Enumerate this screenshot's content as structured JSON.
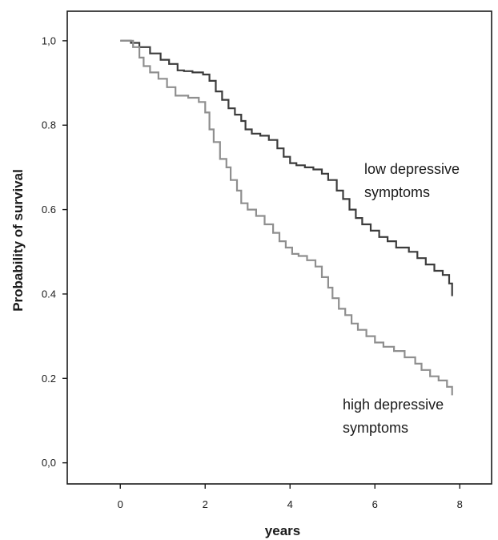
{
  "chart_data": {
    "type": "line",
    "title": "",
    "xlabel": "years",
    "ylabel": "Probability of survival",
    "xlim": [
      -1.25,
      8.75
    ],
    "ylim": [
      -0.05,
      1.07
    ],
    "xticks": [
      0,
      2,
      4,
      6,
      8
    ],
    "xtick_labels": [
      "0",
      "2",
      "4",
      "6",
      "8"
    ],
    "yticks": [
      0.0,
      0.2,
      0.4,
      0.6,
      0.8,
      1.0
    ],
    "ytick_labels": [
      "0,0",
      "0.2",
      "0.4",
      "0.6",
      "0.8",
      "1,0"
    ],
    "grid": false,
    "legend": "none",
    "step": true,
    "series": [
      {
        "name": "low depressive symptoms",
        "color": "#3c3c3c",
        "x": [
          0,
          0.25,
          0.45,
          0.7,
          0.95,
          1.15,
          1.35,
          1.5,
          1.7,
          1.95,
          2.1,
          2.25,
          2.4,
          2.55,
          2.7,
          2.85,
          2.95,
          3.1,
          3.3,
          3.5,
          3.7,
          3.85,
          4.0,
          4.15,
          4.35,
          4.55,
          4.75,
          4.9,
          5.1,
          5.25,
          5.4,
          5.55,
          5.7,
          5.9,
          6.1,
          6.3,
          6.5,
          6.8,
          7.0,
          7.2,
          7.4,
          7.6,
          7.75,
          7.82
        ],
        "y": [
          1.0,
          0.995,
          0.985,
          0.97,
          0.955,
          0.945,
          0.93,
          0.928,
          0.925,
          0.92,
          0.905,
          0.88,
          0.86,
          0.84,
          0.825,
          0.81,
          0.79,
          0.78,
          0.775,
          0.765,
          0.745,
          0.725,
          0.71,
          0.705,
          0.7,
          0.695,
          0.685,
          0.67,
          0.645,
          0.625,
          0.6,
          0.58,
          0.565,
          0.55,
          0.535,
          0.525,
          0.51,
          0.5,
          0.485,
          0.47,
          0.455,
          0.445,
          0.425,
          0.395
        ]
      },
      {
        "name": "high depressive symptoms",
        "color": "#8f8f8f",
        "x": [
          0,
          0.3,
          0.45,
          0.55,
          0.7,
          0.9,
          1.1,
          1.3,
          1.6,
          1.85,
          2.0,
          2.1,
          2.2,
          2.35,
          2.5,
          2.6,
          2.75,
          2.85,
          3.0,
          3.2,
          3.4,
          3.6,
          3.75,
          3.9,
          4.05,
          4.2,
          4.4,
          4.6,
          4.75,
          4.9,
          5.0,
          5.15,
          5.3,
          5.45,
          5.6,
          5.8,
          6.0,
          6.2,
          6.45,
          6.7,
          6.95,
          7.1,
          7.3,
          7.5,
          7.7,
          7.82
        ],
        "y": [
          1.0,
          0.985,
          0.96,
          0.94,
          0.925,
          0.91,
          0.89,
          0.87,
          0.865,
          0.855,
          0.83,
          0.79,
          0.76,
          0.72,
          0.7,
          0.67,
          0.645,
          0.615,
          0.6,
          0.585,
          0.565,
          0.545,
          0.525,
          0.51,
          0.495,
          0.49,
          0.48,
          0.465,
          0.44,
          0.415,
          0.39,
          0.365,
          0.35,
          0.33,
          0.315,
          0.3,
          0.285,
          0.275,
          0.265,
          0.25,
          0.235,
          0.22,
          0.205,
          0.195,
          0.18,
          0.16
        ]
      }
    ],
    "annotations": [
      {
        "lines": [
          "low depressive",
          "symptoms"
        ],
        "series": "low depressive symptoms"
      },
      {
        "lines": [
          "high depressive",
          "symptoms"
        ],
        "series": "high depressive symptoms"
      }
    ]
  }
}
